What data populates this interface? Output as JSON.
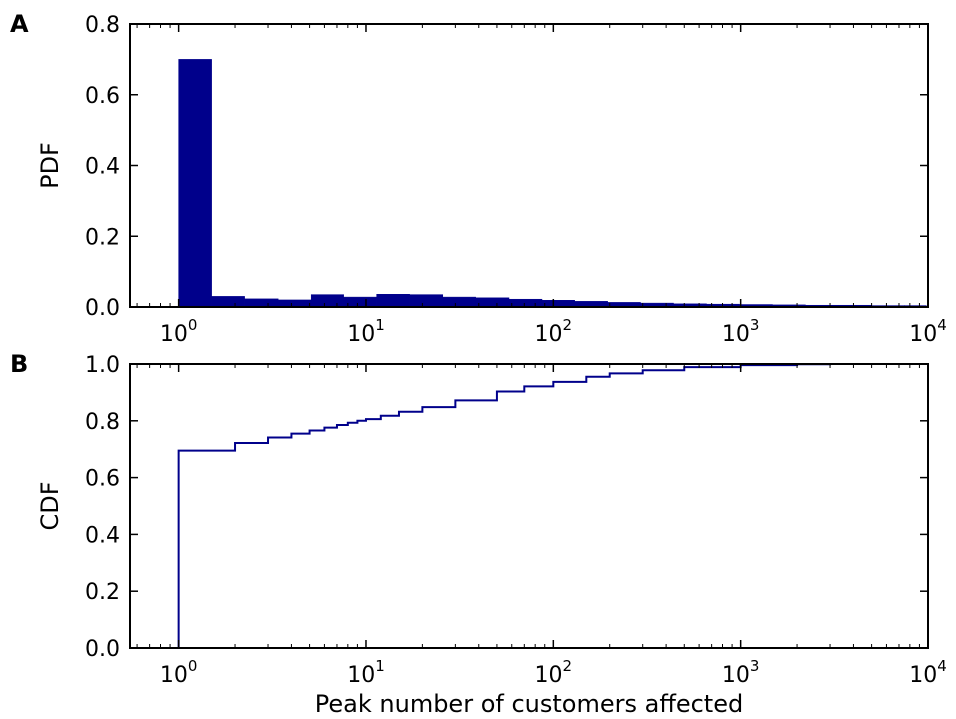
{
  "colors": {
    "series": "#00008b",
    "axes": "#000000",
    "background": "#ffffff"
  },
  "chart_data": [
    {
      "type": "bar",
      "panel_label": "A",
      "title": "",
      "xlabel": "",
      "ylabel": "PDF",
      "x_scale": "log",
      "xlim": [
        0.55,
        10000
      ],
      "ylim": [
        0,
        0.8
      ],
      "x_ticks": [
        {
          "value": 1,
          "base": "10",
          "exp": "0"
        },
        {
          "value": 10,
          "base": "10",
          "exp": "1"
        },
        {
          "value": 100,
          "base": "10",
          "exp": "2"
        },
        {
          "value": 1000,
          "base": "10",
          "exp": "3"
        },
        {
          "value": 10000,
          "base": "10",
          "exp": "4"
        }
      ],
      "y_ticks": [
        {
          "value": 0.0,
          "label": "0.0"
        },
        {
          "value": 0.2,
          "label": "0.2"
        },
        {
          "value": 0.4,
          "label": "0.4"
        },
        {
          "value": 0.6,
          "label": "0.6"
        },
        {
          "value": 0.8,
          "label": "0.8"
        }
      ],
      "grid": false,
      "bins": [
        {
          "x0": 1.0,
          "x1": 1.5,
          "y": 0.7
        },
        {
          "x0": 1.5,
          "x1": 2.25,
          "y": 0.03
        },
        {
          "x0": 2.25,
          "x1": 3.4,
          "y": 0.023
        },
        {
          "x0": 3.4,
          "x1": 5.1,
          "y": 0.02
        },
        {
          "x0": 5.1,
          "x1": 7.6,
          "y": 0.035
        },
        {
          "x0": 7.6,
          "x1": 11.4,
          "y": 0.028
        },
        {
          "x0": 11.4,
          "x1": 17.1,
          "y": 0.036
        },
        {
          "x0": 17.1,
          "x1": 25.7,
          "y": 0.035
        },
        {
          "x0": 25.7,
          "x1": 38.5,
          "y": 0.028
        },
        {
          "x0": 38.5,
          "x1": 58,
          "y": 0.026
        },
        {
          "x0": 58,
          "x1": 87,
          "y": 0.022
        },
        {
          "x0": 87,
          "x1": 130,
          "y": 0.019
        },
        {
          "x0": 130,
          "x1": 195,
          "y": 0.016
        },
        {
          "x0": 195,
          "x1": 292,
          "y": 0.013
        },
        {
          "x0": 292,
          "x1": 438,
          "y": 0.011
        },
        {
          "x0": 438,
          "x1": 657,
          "y": 0.009
        },
        {
          "x0": 657,
          "x1": 985,
          "y": 0.008
        },
        {
          "x0": 985,
          "x1": 1478,
          "y": 0.007
        },
        {
          "x0": 1478,
          "x1": 2217,
          "y": 0.006
        },
        {
          "x0": 2217,
          "x1": 3325,
          "y": 0.005
        },
        {
          "x0": 3325,
          "x1": 4988,
          "y": 0.005
        },
        {
          "x0": 4988,
          "x1": 7482,
          "y": 0.004
        },
        {
          "x0": 7482,
          "x1": 9800,
          "y": 0.004
        }
      ]
    },
    {
      "type": "line",
      "step": true,
      "panel_label": "B",
      "title": "",
      "xlabel": "Peak number of customers affected",
      "ylabel": "CDF",
      "x_scale": "log",
      "xlim": [
        0.55,
        10000
      ],
      "ylim": [
        0,
        1.0
      ],
      "x_ticks": [
        {
          "value": 1,
          "base": "10",
          "exp": "0"
        },
        {
          "value": 10,
          "base": "10",
          "exp": "1"
        },
        {
          "value": 100,
          "base": "10",
          "exp": "2"
        },
        {
          "value": 1000,
          "base": "10",
          "exp": "3"
        },
        {
          "value": 10000,
          "base": "10",
          "exp": "4"
        }
      ],
      "y_ticks": [
        {
          "value": 0.0,
          "label": "0.0"
        },
        {
          "value": 0.2,
          "label": "0.2"
        },
        {
          "value": 0.4,
          "label": "0.4"
        },
        {
          "value": 0.6,
          "label": "0.6"
        },
        {
          "value": 0.8,
          "label": "0.8"
        },
        {
          "value": 1.0,
          "label": "1.0"
        }
      ],
      "grid": false,
      "series": [
        {
          "x": [
            1,
            2,
            3,
            4,
            5,
            6,
            7,
            8,
            9,
            10,
            12,
            15,
            20,
            30,
            50,
            70,
            100,
            150,
            200,
            300,
            500,
            1000,
            2000,
            3000
          ],
          "y": [
            0.695,
            0.722,
            0.741,
            0.755,
            0.766,
            0.776,
            0.785,
            0.793,
            0.8,
            0.806,
            0.818,
            0.832,
            0.848,
            0.872,
            0.903,
            0.921,
            0.937,
            0.955,
            0.967,
            0.978,
            0.989,
            0.996,
            0.999,
            1.0
          ]
        }
      ]
    }
  ]
}
